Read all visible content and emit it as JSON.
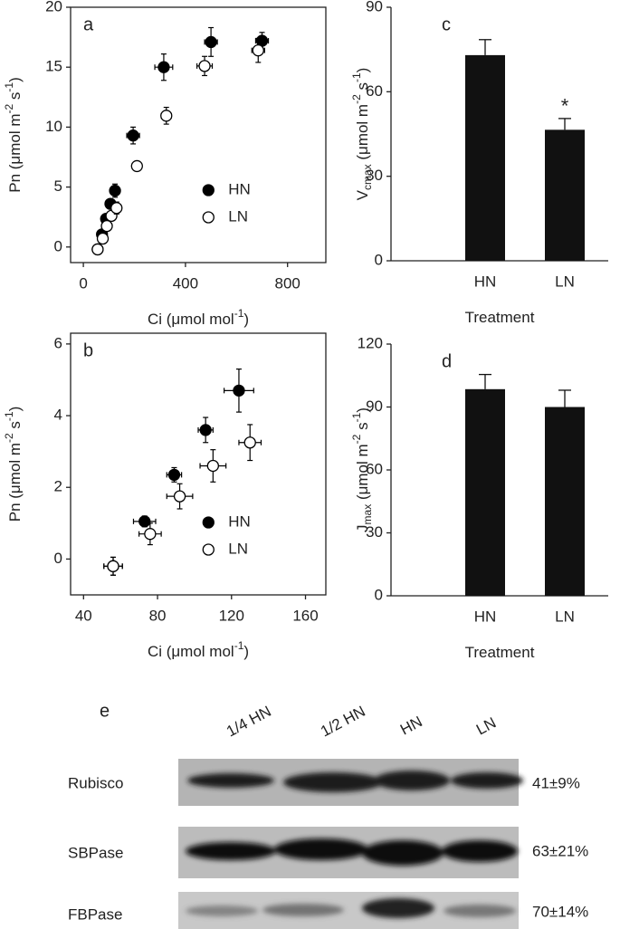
{
  "chart_data": [
    {
      "type": "scatter",
      "label": "a",
      "frame": "box",
      "xlabel": [
        {
          "text": "Ci (μmol mol"
        },
        {
          "text": "-1",
          "shift": "super"
        },
        {
          "text": ")"
        }
      ],
      "ylabel": [
        {
          "text": "Pn (μmol m"
        },
        {
          "text": "-2",
          "shift": "super"
        },
        {
          "text": " s"
        },
        {
          "text": "-1",
          "shift": "super"
        },
        {
          "text": ")"
        }
      ],
      "xlim": [
        -50,
        950
      ],
      "xticks": [
        0,
        400,
        800
      ],
      "ylim": [
        -1.3,
        20
      ],
      "yticks": [
        0,
        5,
        10,
        15,
        20
      ],
      "legend": "lower right",
      "series": [
        {
          "name": "HN",
          "color": "#000000",
          "fill": "#000000",
          "x": [
            56,
            73,
            89,
            106,
            124,
            195,
            315,
            500,
            700
          ],
          "values": [
            -0.2,
            1.05,
            2.35,
            3.6,
            4.7,
            9.3,
            15.0,
            17.1,
            17.2
          ],
          "xerr": [
            8,
            10,
            10,
            12,
            15,
            25,
            35,
            25,
            25
          ],
          "yerr": [
            0.2,
            0.2,
            0.2,
            0.35,
            0.55,
            0.7,
            1.1,
            1.2,
            0.7
          ]
        },
        {
          "name": "LN",
          "color": "#000000",
          "fill": "#ffffff",
          "x": [
            56,
            76,
            92,
            110,
            130,
            210,
            325,
            475,
            685
          ],
          "values": [
            -0.2,
            0.7,
            1.75,
            2.6,
            3.25,
            6.75,
            10.95,
            15.1,
            16.4
          ],
          "xerr": [
            8,
            10,
            10,
            12,
            15,
            15,
            20,
            30,
            25
          ],
          "yerr": [
            0.2,
            0.25,
            0.3,
            0.4,
            0.5,
            0.4,
            0.7,
            0.8,
            1.0
          ]
        }
      ]
    },
    {
      "type": "scatter",
      "label": "b",
      "frame": "box",
      "xlabel": [
        {
          "text": "Ci (μmol mol"
        },
        {
          "text": "-1",
          "shift": "super"
        },
        {
          "text": ")"
        }
      ],
      "ylabel": [
        {
          "text": "Pn (μmol m"
        },
        {
          "text": "-2",
          "shift": "super"
        },
        {
          "text": " s"
        },
        {
          "text": "-1",
          "shift": "super"
        },
        {
          "text": ")"
        }
      ],
      "xlim": [
        33,
        171
      ],
      "xticks": [
        40,
        80,
        120,
        160
      ],
      "ylim": [
        -1,
        6.3
      ],
      "yticks": [
        0,
        2,
        4,
        6
      ],
      "legend": "lower right",
      "series": [
        {
          "name": "HN",
          "color": "#000000",
          "fill": "#000000",
          "x": [
            56,
            73,
            89,
            106,
            124
          ],
          "values": [
            -0.2,
            1.05,
            2.35,
            3.6,
            4.7
          ],
          "xerr": [
            5,
            6,
            4,
            4,
            8
          ],
          "yerr": [
            0.25,
            0.15,
            0.2,
            0.35,
            0.6
          ]
        },
        {
          "name": "LN",
          "color": "#000000",
          "fill": "#ffffff",
          "x": [
            56,
            76,
            92,
            110,
            130
          ],
          "values": [
            -0.2,
            0.7,
            1.75,
            2.6,
            3.25
          ],
          "xerr": [
            5,
            6,
            7,
            7,
            6
          ],
          "yerr": [
            0.25,
            0.3,
            0.35,
            0.45,
            0.5
          ]
        }
      ]
    },
    {
      "type": "bar",
      "label": "c",
      "frame": "axes",
      "xlabel": [
        {
          "text": "Treatment"
        }
      ],
      "ylabel": [
        {
          "text": "V"
        },
        {
          "text": "cmax",
          "shift": "sub"
        },
        {
          "text": " (μmol m"
        },
        {
          "text": "-2",
          "shift": "super"
        },
        {
          "text": " s"
        },
        {
          "text": "-1",
          "shift": "super"
        },
        {
          "text": ")"
        }
      ],
      "categories": [
        "HN",
        "LN"
      ],
      "values": [
        73,
        46.5
      ],
      "errors": [
        5.5,
        4
      ],
      "value_annotations": [
        null,
        "*"
      ],
      "color": "#111111",
      "ylim": [
        0,
        90
      ],
      "yticks": [
        0,
        30,
        60,
        90
      ]
    },
    {
      "type": "bar",
      "label": "d",
      "frame": "axes",
      "xlabel": [
        {
          "text": "Treatment"
        }
      ],
      "ylabel": [
        {
          "text": "J"
        },
        {
          "text": "max",
          "shift": "sub"
        },
        {
          "text": " (μmol m"
        },
        {
          "text": "-2",
          "shift": "super"
        },
        {
          "text": " s"
        },
        {
          "text": "-1",
          "shift": "super"
        },
        {
          "text": ")"
        }
      ],
      "categories": [
        "HN",
        "LN"
      ],
      "values": [
        98.5,
        90
      ],
      "errors": [
        7,
        8
      ],
      "color": "#111111",
      "ylim": [
        0,
        120
      ],
      "yticks": [
        0,
        30,
        60,
        90,
        120
      ]
    }
  ],
  "blot": {
    "label": "e",
    "lanes": [
      "1/4 HN",
      "1/2 HN",
      "HN",
      "LN"
    ],
    "rows": [
      {
        "name": "Rubisco",
        "value": "41±9%"
      },
      {
        "name": "SBPase",
        "value": "63±21%"
      },
      {
        "name": "FBPase",
        "value": "70±14%"
      }
    ]
  }
}
